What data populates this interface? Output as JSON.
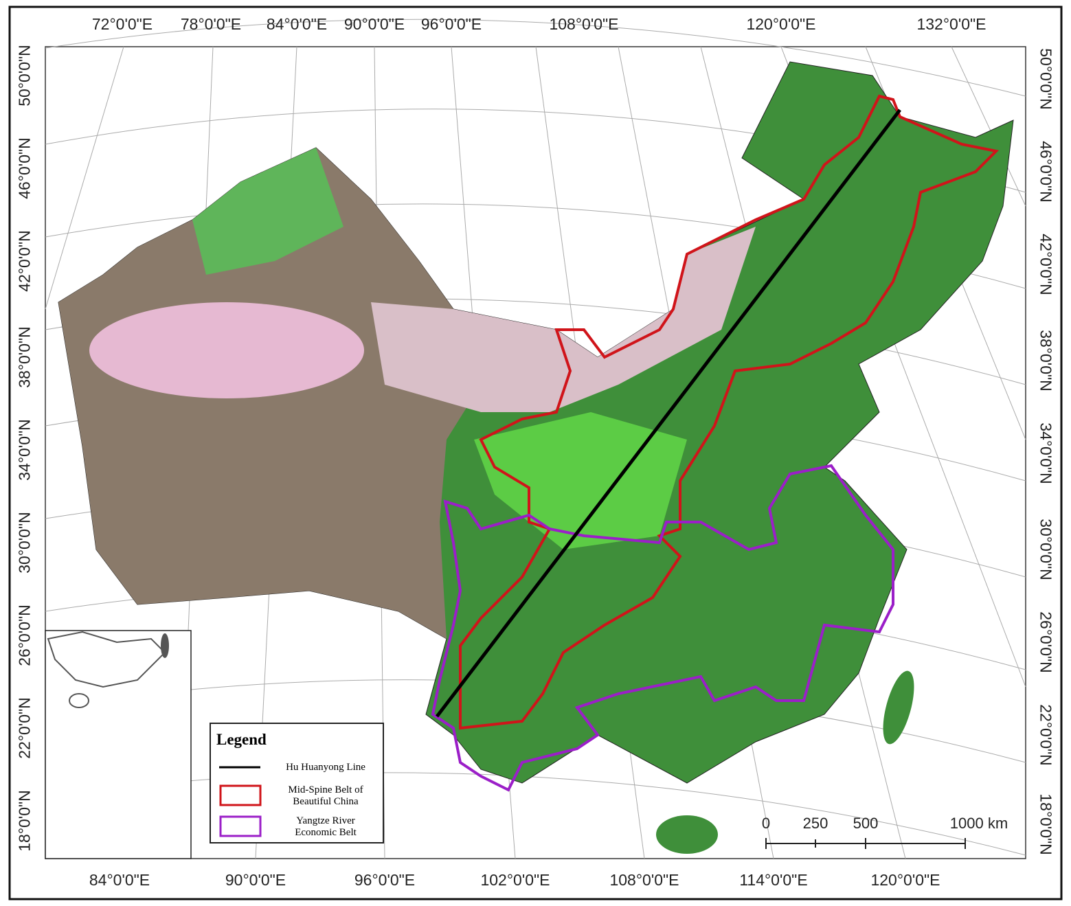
{
  "top_labels": [
    "72°0'0\"E",
    "78°0'0\"E",
    "84°0'0\"E",
    "90°0'0\"E",
    "96°0'0\"E",
    "108°0'0\"E",
    "120°0'0\"E",
    "132°0'0\"E"
  ],
  "bottom_labels": [
    "84°0'0\"E",
    "90°0'0\"E",
    "96°0'0\"E",
    "102°0'0\"E",
    "108°0'0\"E",
    "114°0'0\"E",
    "120°0'0\"E"
  ],
  "left_labels": [
    "50°0'0\"N",
    "46°0'0\"N",
    "42°0'0\"N",
    "38°0'0\"N",
    "34°0'0\"N",
    "30°0'0\"N",
    "26°0'0\"N",
    "22°0'0\"N",
    "18°0'0\"N"
  ],
  "right_labels": [
    "50°0'0\"N",
    "46°0'0\"N",
    "42°0'0\"N",
    "38°0'0\"N",
    "34°0'0\"N",
    "30°0'0\"N",
    "26°0'0\"N",
    "22°0'0\"N",
    "18°0'0\"N"
  ],
  "legend": {
    "title": "Legend",
    "items": [
      "Hu Huanyong Line",
      "Mid-Spine Belt of Beautiful China",
      "Yangtze River Economic Belt"
    ]
  },
  "scale_bar": {
    "labels": [
      "0",
      "250",
      "500",
      "1000 km"
    ]
  }
}
